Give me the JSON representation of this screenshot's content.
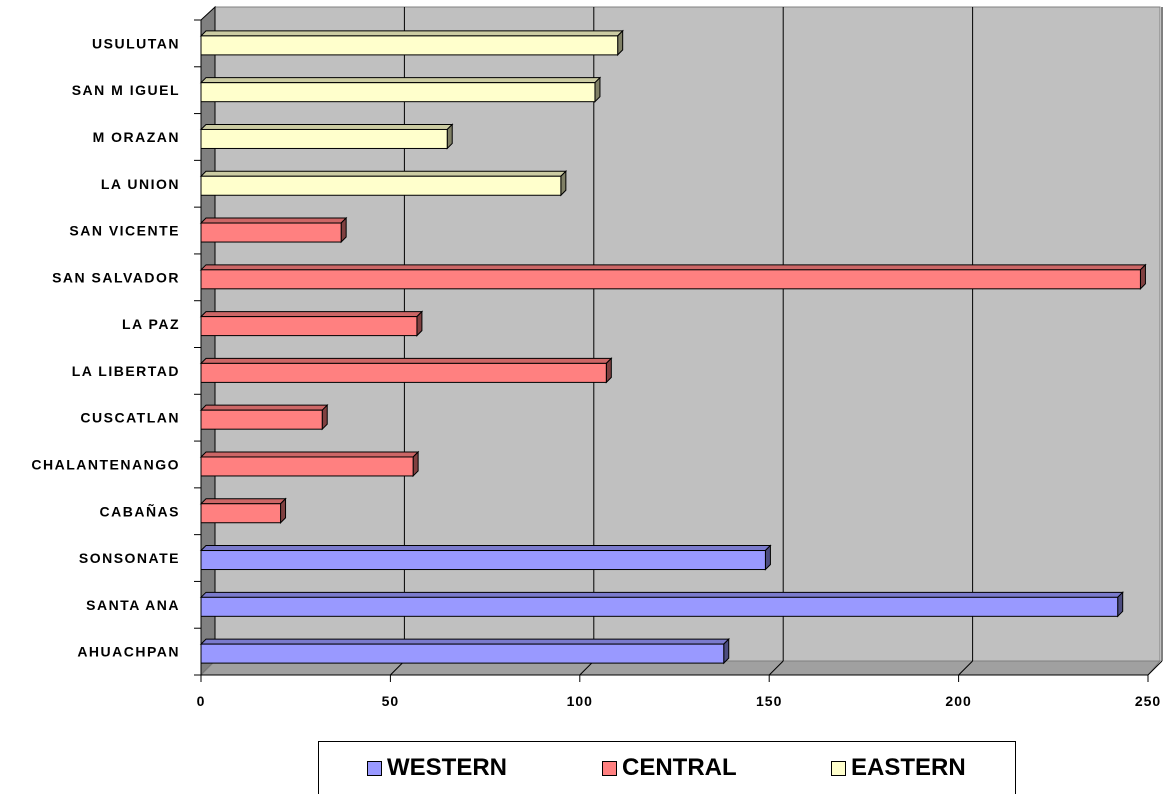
{
  "chart_data": {
    "type": "bar",
    "orientation": "horizontal",
    "style": "3d",
    "categories": [
      "AHUACHPAN",
      "SANTA ANA",
      "SONSONATE",
      "CABAÑAS",
      "CHALANTENANGO",
      "CUSCATLAN",
      "LA LIBERTAD",
      "LA PAZ",
      "SAN SALVADOR",
      "SAN VICENTE",
      "LA UNION",
      "M ORAZAN",
      "SAN M IGUEL",
      "USULUTAN"
    ],
    "values": [
      138,
      242,
      149,
      21,
      56,
      32,
      107,
      57,
      248,
      37,
      95,
      65,
      104,
      110
    ],
    "groups": [
      "WESTERN",
      "WESTERN",
      "WESTERN",
      "CENTRAL",
      "CENTRAL",
      "CENTRAL",
      "CENTRAL",
      "CENTRAL",
      "CENTRAL",
      "CENTRAL",
      "EASTERN",
      "EASTERN",
      "EASTERN",
      "EASTERN"
    ],
    "legend": [
      {
        "name": "WESTERN",
        "color": "#9999ff"
      },
      {
        "name": "CENTRAL",
        "color": "#ff8080"
      },
      {
        "name": "EASTERN",
        "color": "#ffffcc"
      }
    ],
    "xlim": [
      0,
      250
    ],
    "xticks": [
      0,
      50,
      100,
      150,
      200,
      250
    ],
    "grid": true,
    "legend_position": "bottom",
    "plot_background": "#c0c0c0",
    "title": "",
    "xlabel": "",
    "ylabel": ""
  }
}
